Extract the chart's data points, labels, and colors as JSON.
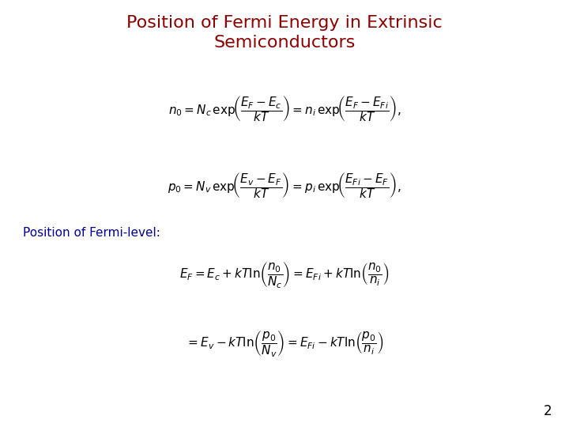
{
  "title_line1": "Position of Fermi Energy in Extrinsic",
  "title_line2": "Semiconductors",
  "title_color": "#8B0000",
  "title_fontsize": 16,
  "subtitle_text": "Position of Fermi-level:",
  "subtitle_color": "#00008B",
  "subtitle_fontsize": 11,
  "eq_color": "#000000",
  "eq_fontsize": 11,
  "page_number": "2",
  "background_color": "#ffffff",
  "fig_width": 7.2,
  "fig_height": 5.4,
  "fig_dpi": 100
}
